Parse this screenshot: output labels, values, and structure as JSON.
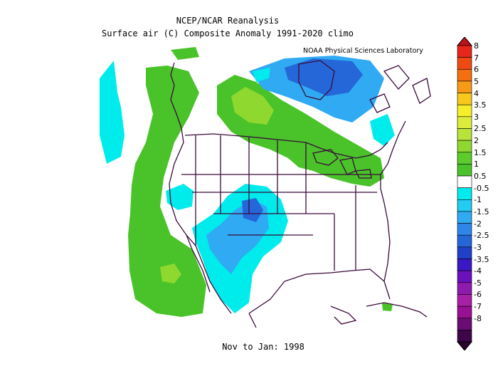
{
  "title": {
    "line1": "NCEP/NCAR Reanalysis",
    "line2": "Surface air (C) Composite Anomaly 1991-2020 climo"
  },
  "credit": "NOAA Physical Sciences Laboratory",
  "period": "Nov to Jan: 1998",
  "colorbar": {
    "labels": [
      "8",
      "7",
      "6",
      "5",
      "4",
      "3.5",
      "3",
      "2.5",
      "2",
      "1.5",
      "1",
      "0.5",
      "-0.5",
      "-1",
      "-1.5",
      "-2",
      "-2.5",
      "-3",
      "-3.5",
      "-4",
      "-5",
      "-6",
      "-7",
      "-8"
    ],
    "colors": [
      "#e8261c",
      "#f04a14",
      "#f46f10",
      "#f79a16",
      "#f8c81c",
      "#f5ef2a",
      "#dcec3a",
      "#b8e43a",
      "#8ed830",
      "#5ccc2a",
      "#4ac22a",
      "#ffffff",
      "#00ecec",
      "#22ccf2",
      "#30aaf2",
      "#2e86e8",
      "#2566d8",
      "#2040c8",
      "#3a18c4",
      "#6a10bc",
      "#8e1aae",
      "#a820a6",
      "#9a1092",
      "#6a0c74",
      "#3c0648"
    ],
    "top_color": "#c0101a",
    "bottom_color": "#2a042e"
  },
  "legend_units": "C"
}
